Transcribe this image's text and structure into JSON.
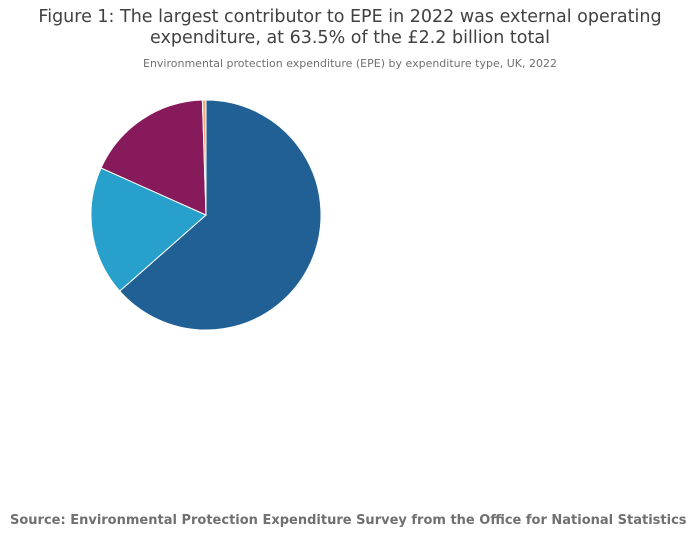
{
  "chart_data": {
    "type": "pie",
    "title_lines": [
      "Figure 1: The largest contributor to EPE in 2022 was external operating",
      "expenditure, at 63.5% of the £2.2 billion total"
    ],
    "subtitle": "Environmental protection expenditure (EPE) by expenditure type, UK, 2022",
    "slices": [
      {
        "value": 63.5,
        "color": "#206095"
      },
      {
        "value": 18.2,
        "color": "#27a0cc"
      },
      {
        "value": 17.8,
        "color": "#871a5b"
      },
      {
        "value": 0.5,
        "color": "#f6a97b"
      }
    ],
    "source": "Source: Environmental Protection Expenditure Survey from the Office for National Statistics"
  }
}
